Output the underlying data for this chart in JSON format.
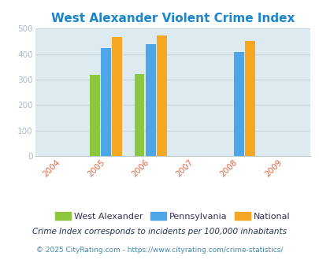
{
  "title": "West Alexander Violent Crime Index",
  "title_color": "#1a85cc",
  "years": [
    2004,
    2005,
    2006,
    2007,
    2008,
    2009
  ],
  "data_years": [
    2005,
    2006,
    2008
  ],
  "west_alexander": [
    318,
    322,
    0
  ],
  "pennsylvania": [
    425,
    440,
    408
  ],
  "national": [
    468,
    472,
    452
  ],
  "bar_colors": {
    "west_alexander": "#8dc63f",
    "pennsylvania": "#4da6e8",
    "national": "#f5a623"
  },
  "ylim": [
    0,
    500
  ],
  "yticks": [
    0,
    100,
    200,
    300,
    400,
    500
  ],
  "plot_bg_color": "#ddeaf0",
  "fig_bg_color": "#ffffff",
  "ytick_color": "#aabbcc",
  "xtick_color": "#dd6644",
  "grid_color": "#c8d8e0",
  "legend_labels": [
    "West Alexander",
    "Pennsylvania",
    "National"
  ],
  "legend_text_color": "#333355",
  "footnote1": "Crime Index corresponds to incidents per 100,000 inhabitants",
  "footnote2": "© 2025 CityRating.com - https://www.cityrating.com/crime-statistics/",
  "footnote1_color": "#223355",
  "footnote2_color": "#4488aa",
  "bar_width": 0.25,
  "xlim": [
    2003.4,
    2009.6
  ]
}
